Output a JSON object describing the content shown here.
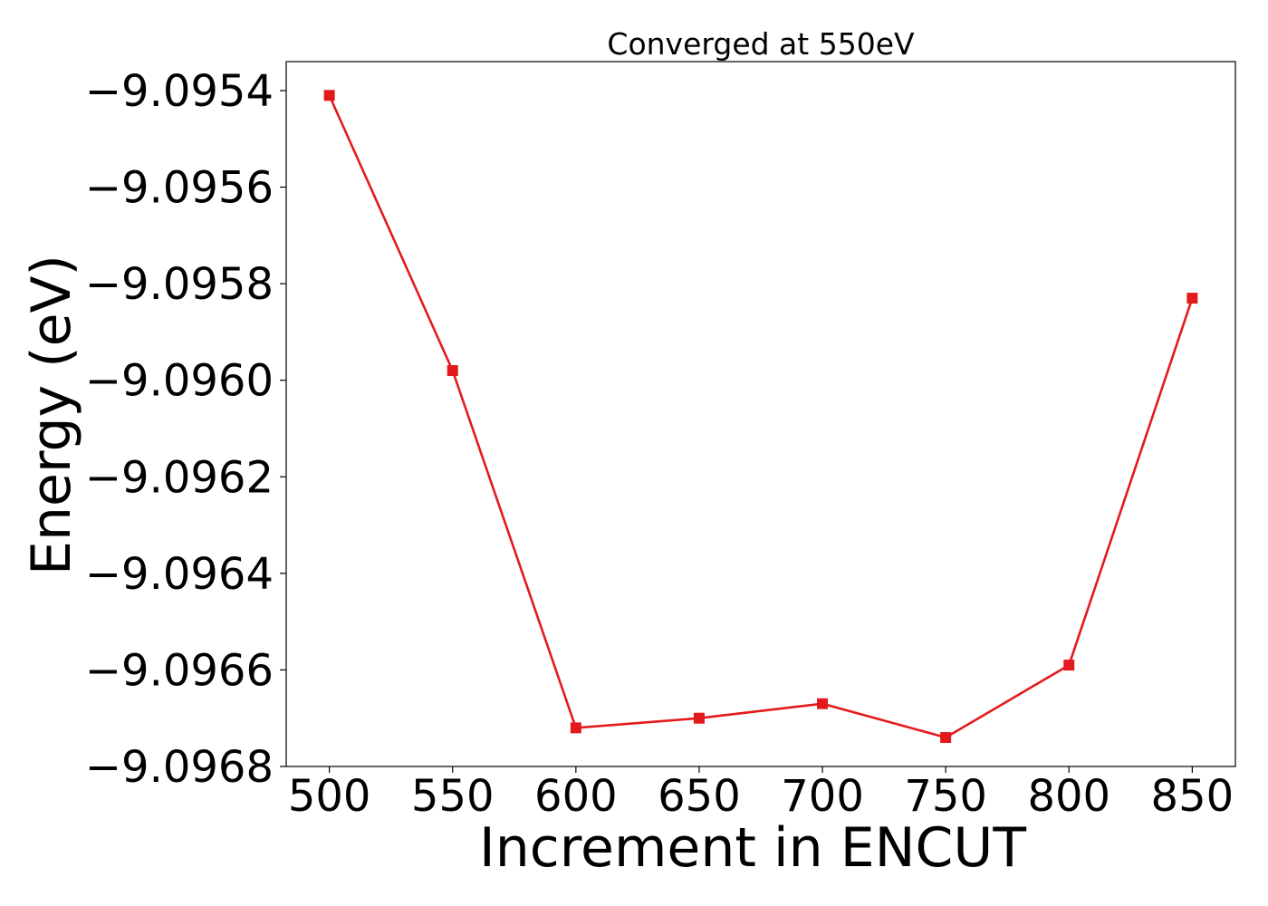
{
  "chart_data": {
    "type": "line",
    "title": "Converged at 550eV",
    "xlabel": "Increment in ENCUT",
    "ylabel": "Energy (eV)",
    "x": [
      500,
      550,
      600,
      650,
      700,
      750,
      800,
      850
    ],
    "series": [
      {
        "values": [
          -9.09541,
          -9.09598,
          -9.09672,
          -9.0967,
          -9.09667,
          -9.09674,
          -9.09659,
          -9.09583
        ],
        "color": "#e31a1c",
        "marker": "square"
      }
    ],
    "xlim": [
      482.5,
      867.5
    ],
    "ylim": [
      -9.0968,
      -9.09534
    ],
    "xticks": [
      500,
      550,
      600,
      650,
      700,
      750,
      800,
      850
    ],
    "xtick_labels": [
      "500",
      "550",
      "600",
      "650",
      "700",
      "750",
      "800",
      "850"
    ],
    "yticks": [
      -9.0954,
      -9.0956,
      -9.0958,
      -9.096,
      -9.0962,
      -9.0964,
      -9.0966,
      -9.0968
    ],
    "ytick_labels": [
      "−9.0954",
      "−9.0956",
      "−9.0958",
      "−9.0960",
      "−9.0962",
      "−9.0964",
      "−9.0966",
      "−9.0968"
    ],
    "grid": false,
    "legend": "none"
  }
}
